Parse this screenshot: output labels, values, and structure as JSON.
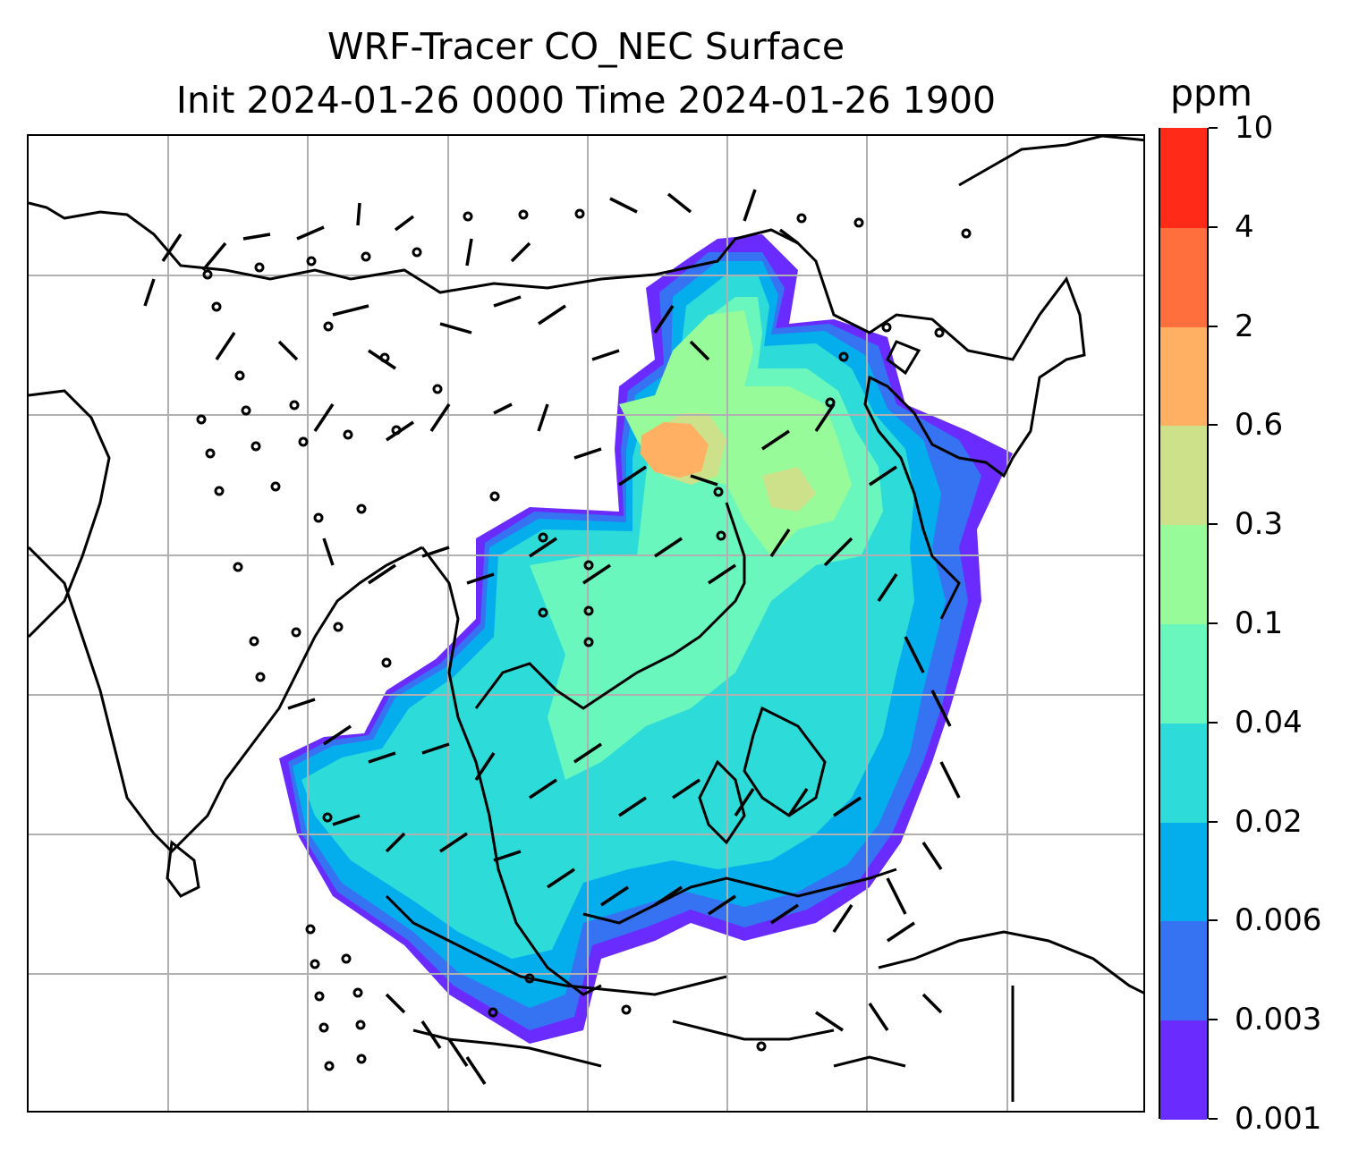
{
  "title": {
    "line1": "WRF-Tracer CO_NEC Surface",
    "line2": "Init 2024-01-26 0000 Time 2024-01-26 1900"
  },
  "colorbar": {
    "unit": "ppm",
    "levels": [
      "0.001",
      "0.003",
      "0.006",
      "0.02",
      "0.04",
      "0.1",
      "0.3",
      "0.6",
      "2",
      "4",
      "10"
    ],
    "colors": [
      "#6a2bff",
      "#3673f3",
      "#04aeec",
      "#2ddcd8",
      "#69f7be",
      "#98fb9a",
      "#cde18a",
      "#ffb062",
      "#ff6f3d",
      "#ff2a18"
    ]
  },
  "map": {
    "field": "CO_NEC Surface concentration with surface wind barbs",
    "gridlines": true
  }
}
